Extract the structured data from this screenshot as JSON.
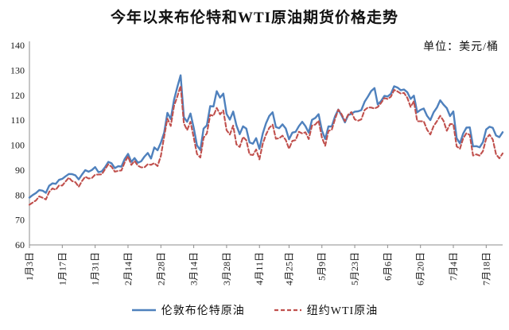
{
  "title": "今年以来布伦特和WTI原油期货价格走势",
  "unit_label": "单位：美元/桶",
  "colors": {
    "brent": "#4F81BD",
    "wti": "#C0504D",
    "axis": "#8c8c8c",
    "background": "#ffffff"
  },
  "legend": [
    {
      "label": "伦敦布伦特原油",
      "style": "solid",
      "color": "#4F81BD"
    },
    {
      "label": "纽约WTI原油",
      "style": "dashed",
      "color": "#C0504D"
    }
  ],
  "chart_data": {
    "type": "line",
    "title": "今年以来布伦特和WTI原油期货价格走势",
    "xlabel": "",
    "ylabel": "美元/桶",
    "ylim": [
      60,
      140
    ],
    "y_ticks": [
      60,
      70,
      80,
      90,
      100,
      110,
      120,
      130,
      140
    ],
    "grid": false,
    "legend_position": "bottom",
    "x_tick_labels": [
      "1月3日",
      "1月17日",
      "1月31日",
      "2月14日",
      "2月28日",
      "3月14日",
      "3月28日",
      "4月11日",
      "4月25日",
      "5月9日",
      "5月23日",
      "6月6日",
      "6月20日",
      "7月4日",
      "7月18日"
    ],
    "x_tick_indices": [
      0,
      10,
      20,
      30,
      40,
      50,
      60,
      70,
      79,
      89,
      99,
      109,
      119,
      129,
      139
    ],
    "series": [
      {
        "name": "伦敦布伦特原油",
        "color": "#4F81BD",
        "dash": "solid",
        "values": [
          78.98,
          80.0,
          80.8,
          81.99,
          81.75,
          80.87,
          83.72,
          84.67,
          84.47,
          86.06,
          86.48,
          87.51,
          88.44,
          88.38,
          87.89,
          86.27,
          88.2,
          89.96,
          89.34,
          90.03,
          91.21,
          89.16,
          89.47,
          91.11,
          93.27,
          92.69,
          90.78,
          91.55,
          91.41,
          94.44,
          96.48,
          93.28,
          94.81,
          92.97,
          93.54,
          95.39,
          96.84,
          94.62,
          99.08,
          97.93,
          100.99,
          104.97,
          112.93,
          110.46,
          118.11,
          123.21,
          127.98,
          111.14,
          109.33,
          112.67,
          106.9,
          99.91,
          98.02,
          106.64,
          107.93,
          115.62,
          115.48,
          121.6,
          119.03,
          120.65,
          112.48,
          110.23,
          113.45,
          107.91,
          104.39,
          107.53,
          106.64,
          101.07,
          100.58,
          102.78,
          98.48,
          104.64,
          108.78,
          111.7,
          113.16,
          107.25,
          106.8,
          108.33,
          106.65,
          102.32,
          104.99,
          105.32,
          107.59,
          109.34,
          107.58,
          104.97,
          110.14,
          110.9,
          112.39,
          105.94,
          102.46,
          107.51,
          107.45,
          111.55,
          114.24,
          111.93,
          109.11,
          112.04,
          112.55,
          113.42,
          113.56,
          114.03,
          117.4,
          119.43,
          121.67,
          122.84,
          116.29,
          117.61,
          119.72,
          119.51,
          120.57,
          123.58,
          123.07,
          122.01,
          122.27,
          121.17,
          118.51,
          119.81,
          113.12,
          114.13,
          114.65,
          111.74,
          110.05,
          113.12,
          115.09,
          117.98,
          116.26,
          114.81,
          111.63,
          113.5,
          102.77,
          100.69,
          104.65,
          107.02,
          107.1,
          99.49,
          99.57,
          99.1,
          101.16,
          106.27,
          107.35,
          106.92,
          103.86,
          103.2,
          105.15
        ]
      },
      {
        "name": "纽约WTI原油",
        "color": "#C0504D",
        "dash": "dashed",
        "values": [
          76.08,
          76.99,
          77.85,
          79.46,
          78.9,
          78.23,
          81.22,
          82.64,
          82.12,
          83.82,
          83.82,
          85.43,
          86.96,
          85.55,
          85.14,
          83.31,
          85.6,
          87.35,
          86.61,
          86.82,
          88.15,
          88.2,
          88.26,
          90.27,
          92.31,
          91.32,
          89.36,
          89.66,
          89.88,
          93.1,
          95.46,
          92.07,
          93.66,
          91.76,
          91.07,
          91.07,
          92.35,
          92.1,
          92.81,
          91.59,
          95.72,
          103.41,
          110.6,
          107.67,
          115.68,
          119.4,
          123.7,
          108.7,
          106.02,
          109.33,
          103.01,
          96.44,
          95.04,
          102.98,
          104.7,
          112.12,
          111.76,
          114.93,
          112.34,
          113.9,
          105.96,
          104.24,
          107.82,
          100.28,
          99.27,
          103.28,
          101.96,
          96.23,
          96.03,
          98.26,
          94.29,
          100.6,
          104.25,
          106.95,
          108.21,
          102.56,
          102.75,
          103.79,
          102.07,
          98.54,
          101.7,
          102.02,
          105.36,
          104.69,
          105.17,
          102.41,
          107.81,
          108.26,
          109.77,
          103.09,
          99.76,
          105.71,
          106.13,
          110.49,
          114.2,
          112.4,
          109.59,
          112.21,
          113.23,
          110.29,
          109.77,
          110.33,
          114.09,
          115.07,
          115.07,
          114.67,
          115.26,
          116.87,
          118.87,
          118.5,
          119.41,
          122.11,
          121.51,
          120.67,
          120.93,
          118.93,
          115.31,
          117.59,
          109.56,
          109.56,
          109.52,
          106.19,
          104.27,
          107.62,
          109.57,
          111.76,
          109.78,
          105.76,
          108.43,
          108.43,
          99.5,
          98.53,
          102.73,
          104.79,
          104.09,
          95.84,
          96.3,
          95.78,
          97.59,
          102.6,
          104.22,
          102.26,
          96.35,
          94.7,
          96.7
        ]
      }
    ]
  }
}
